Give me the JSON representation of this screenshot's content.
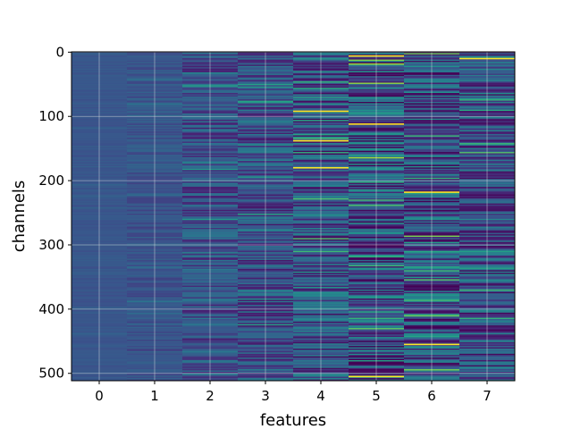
{
  "chart_data": {
    "type": "heatmap",
    "xlabel": "features",
    "ylabel": "channels",
    "x_categories": [
      "0",
      "1",
      "2",
      "3",
      "4",
      "5",
      "6",
      "7"
    ],
    "y_range": [
      0,
      511
    ],
    "y_ticks": [
      "0",
      "100",
      "200",
      "300",
      "400",
      "500"
    ],
    "y_inverted": true,
    "grid": true,
    "colormap": "viridis",
    "column_spread": [
      0.05,
      0.12,
      0.3,
      0.35,
      0.45,
      0.6,
      0.55,
      0.45
    ],
    "bright_lines": [
      {
        "feature": 4,
        "channel": 92
      },
      {
        "feature": 4,
        "channel": 138
      },
      {
        "feature": 4,
        "channel": 180
      },
      {
        "feature": 5,
        "channel": 6
      },
      {
        "feature": 5,
        "channel": 112
      },
      {
        "feature": 5,
        "channel": 505
      },
      {
        "feature": 6,
        "channel": 218
      },
      {
        "feature": 6,
        "channel": 455
      },
      {
        "feature": 7,
        "channel": 10
      }
    ]
  },
  "colors": {
    "background": "#3b528b",
    "grid": "#e6e6e6",
    "bright": "#fde725"
  }
}
